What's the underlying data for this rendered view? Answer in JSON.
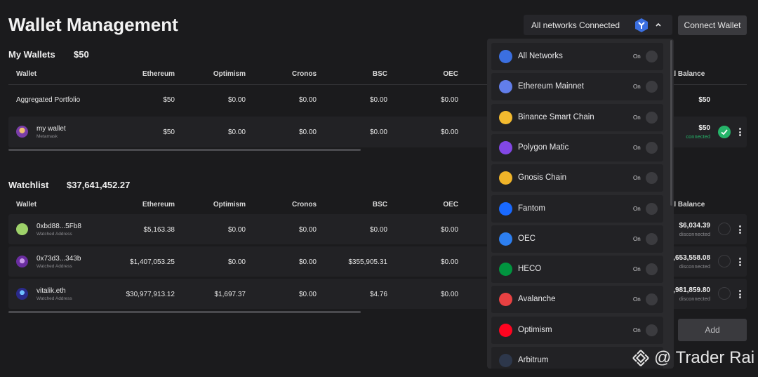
{
  "header": {
    "title": "Wallet Management",
    "network_selector": "All networks Connected",
    "connect_button": "Connect Wallet"
  },
  "columns": [
    "Wallet",
    "Ethereum",
    "Optimism",
    "Cronos",
    "BSC",
    "OEC",
    "Total Balance"
  ],
  "my_wallets": {
    "title": "My Wallets",
    "total": "$50",
    "aggregated": {
      "label": "Aggregated Portfolio",
      "values": [
        "$50",
        "$0.00",
        "$0.00",
        "$0.00",
        "$0.00"
      ],
      "total": "$50"
    },
    "rows": [
      {
        "name": "my wallet",
        "sub": "Metamask",
        "values": [
          "$50",
          "$0.00",
          "$0.00",
          "$0.00",
          "$0.00"
        ],
        "total": "$50",
        "status": "connected"
      }
    ]
  },
  "watchlist": {
    "title": "Watchlist",
    "total": "$37,641,452.27",
    "rows": [
      {
        "name": "0xbd88...5Fb8",
        "sub": "Watched Address",
        "values": [
          "$5,163.38",
          "$0.00",
          "$0.00",
          "$0.00",
          "$0.00"
        ],
        "total": "$6,034.39",
        "status": "disconnected"
      },
      {
        "name": "0x73d3...343b",
        "sub": "Watched Address",
        "values": [
          "$1,407,053.25",
          "$0.00",
          "$0.00",
          "$355,905.31",
          "$0.00"
        ],
        "total": ",653,558.08",
        "status": "disconnected"
      },
      {
        "name": "vitalik.eth",
        "sub": "Watched Address",
        "values": [
          "$30,977,913.12",
          "$1,697.37",
          "$0.00",
          "$4.76",
          "$0.00"
        ],
        "total": "0,981,859.80",
        "status": "disconnected"
      }
    ],
    "add_button": "Add"
  },
  "networks": [
    {
      "name": "All Networks",
      "state": "On",
      "color": "#3b6fe0",
      "icon": "all-networks-icon"
    },
    {
      "name": "Ethereum Mainnet",
      "state": "On",
      "color": "#627eea",
      "icon": "ethereum-icon"
    },
    {
      "name": "Binance Smart Chain",
      "state": "On",
      "color": "#f3ba2f",
      "icon": "binance-icon"
    },
    {
      "name": "Polygon Matic",
      "state": "On",
      "color": "#8247e5",
      "icon": "polygon-icon"
    },
    {
      "name": "Gnosis Chain",
      "state": "On",
      "color": "#f0b429",
      "icon": "gnosis-icon"
    },
    {
      "name": "Fantom",
      "state": "On",
      "color": "#1969ff",
      "icon": "fantom-icon"
    },
    {
      "name": "OEC",
      "state": "On",
      "color": "#2d7ff0",
      "icon": "oec-icon"
    },
    {
      "name": "HECO",
      "state": "On",
      "color": "#01943f",
      "icon": "heco-icon"
    },
    {
      "name": "Avalanche",
      "state": "On",
      "color": "#e84142",
      "icon": "avalanche-icon"
    },
    {
      "name": "Optimism",
      "state": "On",
      "color": "#ff0420",
      "icon": "optimism-icon"
    },
    {
      "name": "Arbitrum",
      "state": "",
      "color": "#2d374b",
      "icon": "arbitrum-icon"
    }
  ],
  "watermark": "@ Trader Rai",
  "colors": {
    "connected": "#26b46a",
    "background": "#1b1b1d",
    "row": "#222225",
    "disconnected": "#8a8a8e"
  }
}
